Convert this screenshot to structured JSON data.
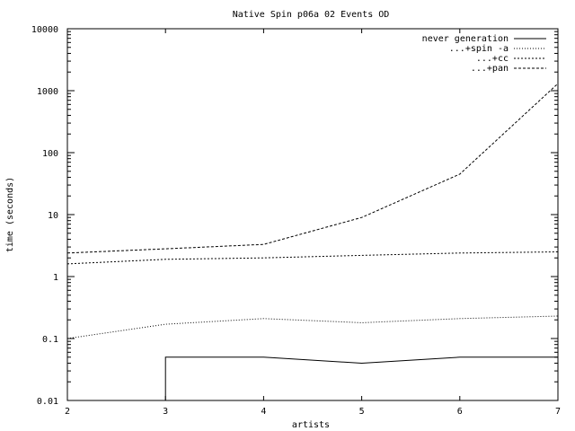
{
  "chart_data": {
    "type": "line",
    "title": "Native Spin p06a 02 Events OD",
    "xlabel": "artists",
    "ylabel": "time (seconds)",
    "xlim": [
      2,
      7
    ],
    "ylim": [
      0.01,
      10000
    ],
    "yscale": "log",
    "grid": false,
    "legend_position": "top-right",
    "x_ticks": [
      "2",
      "3",
      "4",
      "5",
      "6",
      "7"
    ],
    "y_ticks": [
      "0.01",
      "0.1",
      "1",
      "10",
      "100",
      "1000",
      "10000"
    ],
    "series": [
      {
        "name": "never generation",
        "style": "solid",
        "points": [
          [
            3,
            0.01
          ],
          [
            3,
            0.05
          ],
          [
            4,
            0.05
          ],
          [
            5,
            0.04
          ],
          [
            6,
            0.05
          ],
          [
            7,
            0.05
          ]
        ]
      },
      {
        "name": "...+spin -a",
        "style": "dotted",
        "points": [
          [
            2,
            0.1
          ],
          [
            3,
            0.17
          ],
          [
            4,
            0.21
          ],
          [
            5,
            0.18
          ],
          [
            6,
            0.21
          ],
          [
            7,
            0.23
          ]
        ]
      },
      {
        "name": "...+cc",
        "style": "dashed-fine",
        "points": [
          [
            2,
            1.6
          ],
          [
            3,
            1.9
          ],
          [
            4,
            2.0
          ],
          [
            5,
            2.2
          ],
          [
            6,
            2.4
          ],
          [
            7,
            2.5
          ]
        ]
      },
      {
        "name": "...+pan",
        "style": "dashed",
        "points": [
          [
            2,
            2.4
          ],
          [
            3,
            2.8
          ],
          [
            4,
            3.3
          ],
          [
            5,
            9.0
          ],
          [
            6,
            45
          ],
          [
            7,
            1300
          ]
        ]
      }
    ]
  }
}
